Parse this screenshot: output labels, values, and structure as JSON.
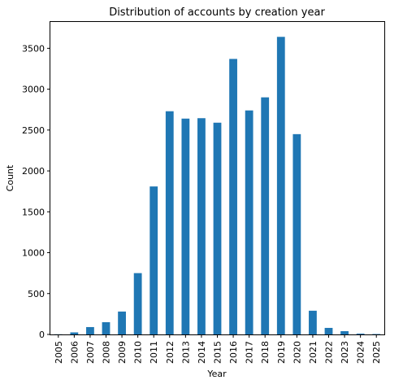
{
  "chart_data": {
    "type": "bar",
    "title": "Distribution of accounts by creation year",
    "xlabel": "Year",
    "ylabel": "Count",
    "categories": [
      "2005",
      "2006",
      "2007",
      "2008",
      "2009",
      "2010",
      "2011",
      "2012",
      "2013",
      "2014",
      "2015",
      "2016",
      "2017",
      "2018",
      "2019",
      "2020",
      "2021",
      "2022",
      "2023",
      "2024",
      "2025"
    ],
    "values": [
      2,
      25,
      90,
      150,
      280,
      750,
      1810,
      2730,
      2640,
      2645,
      2590,
      3370,
      2740,
      2900,
      3640,
      2450,
      290,
      80,
      40,
      10,
      5
    ],
    "ylim": [
      0,
      3822
    ],
    "yticks": [
      0,
      500,
      1000,
      1500,
      2000,
      2500,
      3000,
      3500
    ],
    "grid": false,
    "legend": "none",
    "bar_color": "#1f77b4"
  }
}
